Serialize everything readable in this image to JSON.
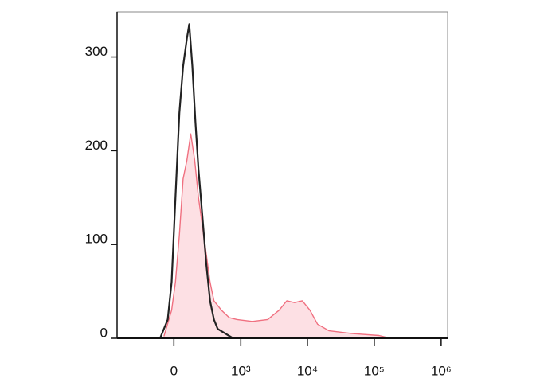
{
  "chart_data": {
    "type": "histogram-line",
    "xscale": "asinh",
    "xlim": [
      -700,
      1250000
    ],
    "xticks": [
      0,
      {
        "value": 1000,
        "label": "10³"
      },
      {
        "value": 10000,
        "label": "10⁴"
      },
      {
        "value": 100000,
        "label": "10⁵"
      },
      {
        "value": 1000000,
        "label": "10⁶"
      }
    ],
    "ylim": [
      0,
      348
    ],
    "yticks": [
      0,
      100,
      200,
      300
    ],
    "series": [
      {
        "color": "#f07080",
        "fill": "#fde0e4",
        "x": [
          -71,
          -16,
          11,
          38,
          65,
          94,
          124,
          157,
          192,
          231,
          274,
          321,
          375,
          499,
          665,
          873,
          1493,
          2545,
          3780,
          4930,
          6425,
          8380,
          10900,
          14200,
          21100,
          46700,
          118000,
          175000
        ],
        "values": [
          2,
          30,
          60,
          110,
          170,
          190,
          218,
          190,
          150,
          120,
          90,
          60,
          40,
          30,
          22,
          20,
          18,
          20,
          30,
          40,
          38,
          40,
          30,
          15,
          8,
          5,
          3,
          0
        ]
      },
      {
        "color": "#222222",
        "x": [
          -100,
          -43,
          -16,
          11,
          38,
          65,
          94,
          112,
          137,
          164,
          192,
          231,
          274,
          321,
          375,
          434,
          576,
          762
        ],
        "values": [
          0,
          20,
          60,
          150,
          240,
          290,
          320,
          335,
          290,
          230,
          180,
          130,
          80,
          40,
          20,
          10,
          5,
          0
        ]
      }
    ]
  }
}
